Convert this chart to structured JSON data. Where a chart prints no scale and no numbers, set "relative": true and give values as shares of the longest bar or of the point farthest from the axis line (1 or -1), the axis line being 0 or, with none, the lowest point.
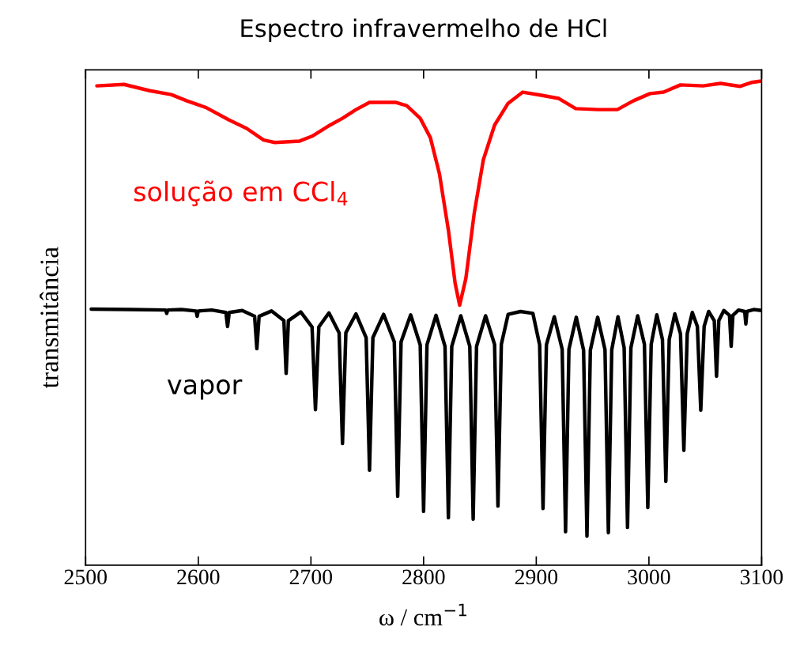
{
  "chart_data": {
    "type": "line",
    "title": "Espectro infravermelho de HCl",
    "xlabel": "ω / cm$^{−1}$",
    "ylabel": "transmitância",
    "relative": true,
    "xlim": [
      2500,
      3100
    ],
    "xticks": [
      2500,
      2600,
      2700,
      2800,
      2900,
      3000,
      3100
    ],
    "tick_labels": "x",
    "grid": false,
    "series": [
      {
        "name": "solução em CCl$_{4}$",
        "color": "#ff0000",
        "x": [
          2510,
          2534,
          2557,
          2576,
          2590,
          2607,
          2627,
          2643,
          2658,
          2668,
          2690,
          2701,
          2717,
          2728,
          2740,
          2752,
          2775,
          2785,
          2797,
          2806,
          2814,
          2822,
          2828,
          2832,
          2837.5,
          2845,
          2853,
          2863,
          2875,
          2888,
          2903.5,
          2920,
          2935,
          2955,
          2972,
          2986,
          3001,
          3013,
          3028,
          3048,
          3063.5,
          3081,
          3091,
          3100
        ],
        "values": [
          0.99,
          0.993,
          0.98,
          0.972,
          0.959,
          0.945,
          0.92,
          0.902,
          0.878,
          0.873,
          0.876,
          0.886,
          0.909,
          0.923,
          0.941,
          0.956,
          0.956,
          0.949,
          0.923,
          0.883,
          0.809,
          0.692,
          0.582,
          0.537,
          0.592,
          0.728,
          0.837,
          0.909,
          0.954,
          0.977,
          0.971,
          0.964,
          0.943,
          0.941,
          0.941,
          0.959,
          0.974,
          0.977,
          0.992,
          0.99,
          0.995,
          0.989,
          0.997,
          1.0
        ]
      },
      {
        "name": "vapor",
        "color": "#000000",
        "x": [
          2505,
          2540,
          2571,
          2572,
          2573,
          2585,
          2598,
          2599,
          2600,
          2612,
          2624.5,
          2626,
          2627.5,
          2639,
          2650,
          2652,
          2654,
          2665,
          2676,
          2678,
          2680,
          2691,
          2701,
          2704,
          2707,
          2716,
          2725,
          2728,
          2731,
          2740,
          2749,
          2752,
          2755,
          2764.5,
          2774,
          2777,
          2780,
          2788.5,
          2797,
          2800,
          2803,
          2811,
          2819,
          2822,
          2825,
          2833,
          2841,
          2844,
          2847,
          2855,
          2863,
          2866,
          2869,
          2875,
          2886,
          2897,
          2903,
          2906,
          2909,
          2916,
          2923,
          2926,
          2929,
          2935.5,
          2942,
          2945,
          2948,
          2954.5,
          2961,
          2964,
          2967,
          2972.5,
          2978,
          2981,
          2984,
          2990,
          2996,
          2999,
          3002,
          3007,
          3012,
          3015,
          3018,
          3023,
          3028,
          3031,
          3034,
          3038.5,
          3043,
          3046,
          3049,
          3053,
          3058,
          3060,
          3062,
          3066.5,
          3071.5,
          3073,
          3074.5,
          3079.5,
          3085,
          3086,
          3087,
          3093,
          3100
        ],
        "values": [
          0.529,
          0.528,
          0.527,
          0.52,
          0.527,
          0.528,
          0.525,
          0.514,
          0.525,
          0.527,
          0.522,
          0.493,
          0.522,
          0.526,
          0.514,
          0.447,
          0.514,
          0.525,
          0.505,
          0.396,
          0.505,
          0.523,
          0.492,
          0.321,
          0.492,
          0.521,
          0.48,
          0.251,
          0.48,
          0.519,
          0.47,
          0.196,
          0.47,
          0.518,
          0.461,
          0.142,
          0.461,
          0.517,
          0.455,
          0.111,
          0.455,
          0.516,
          0.452,
          0.098,
          0.452,
          0.515,
          0.452,
          0.095,
          0.452,
          0.515,
          0.456,
          0.122,
          0.456,
          0.518,
          0.524,
          0.52,
          0.455,
          0.117,
          0.455,
          0.513,
          0.446,
          0.069,
          0.446,
          0.512,
          0.444,
          0.06,
          0.444,
          0.512,
          0.445,
          0.067,
          0.445,
          0.513,
          0.449,
          0.078,
          0.449,
          0.515,
          0.456,
          0.119,
          0.456,
          0.517,
          0.466,
          0.173,
          0.466,
          0.519,
          0.478,
          0.237,
          0.478,
          0.522,
          0.493,
          0.32,
          0.493,
          0.524,
          0.505,
          0.39,
          0.505,
          0.526,
          0.516,
          0.452,
          0.516,
          0.527,
          0.524,
          0.498,
          0.524,
          0.528,
          0.526
        ]
      }
    ]
  }
}
